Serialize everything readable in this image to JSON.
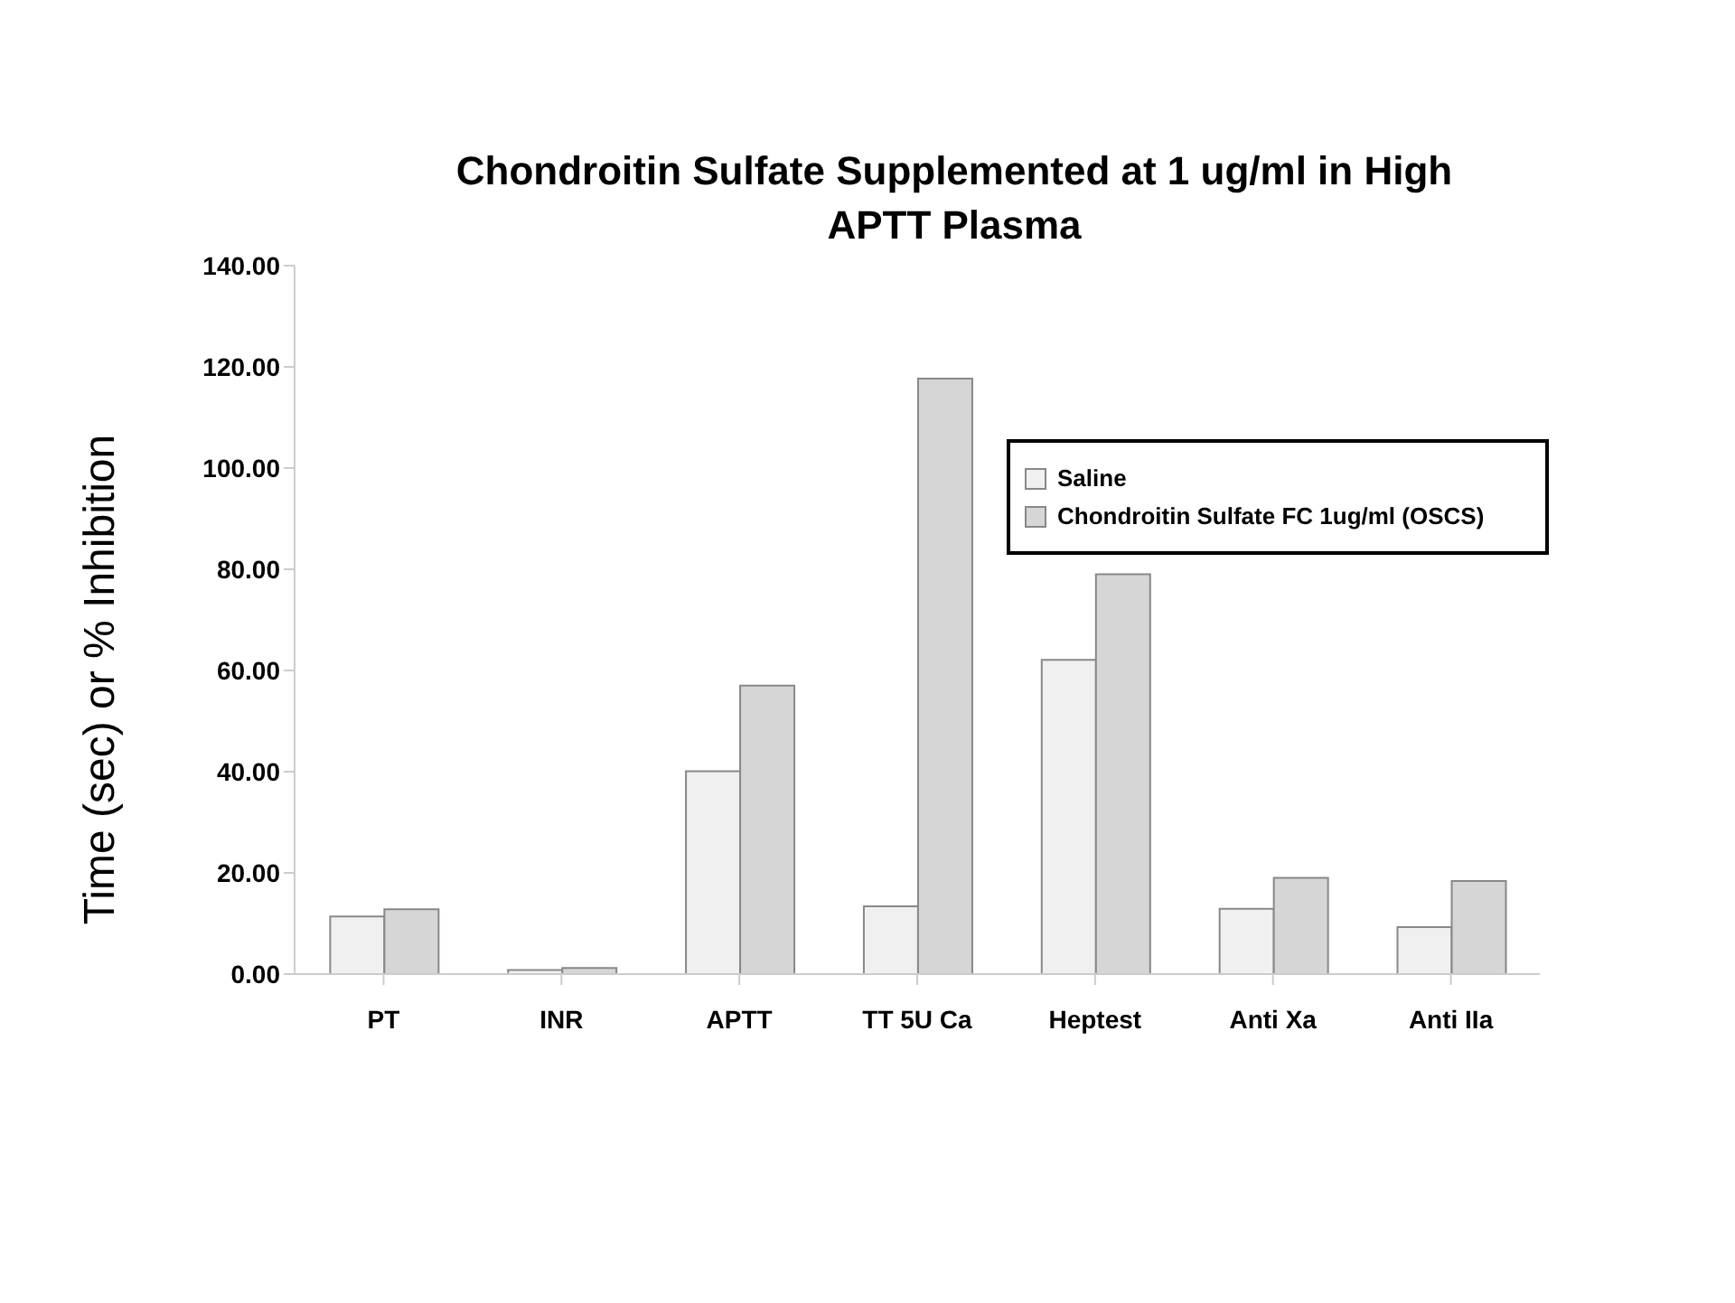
{
  "chart_data": {
    "type": "bar",
    "title": "Chondroitin Sulfate Supplemented at 1 ug/ml in High APTT Plasma",
    "ylabel": "Time (sec) or % Inhibition",
    "categories": [
      "PT",
      "INR",
      "APTT",
      "TT 5U Ca",
      "Heptest",
      "Anti Xa",
      "Anti IIa"
    ],
    "series": [
      {
        "name": "Saline",
        "color": "#f0f0f0",
        "values": [
          11.4,
          0.8,
          40.1,
          13.4,
          62.1,
          12.9,
          9.3
        ]
      },
      {
        "name": "Chondroitin Sulfate FC 1ug/ml (OSCS)",
        "color": "#d6d6d6",
        "values": [
          12.8,
          1.2,
          57.0,
          117.7,
          79.0,
          19.0,
          18.4
        ]
      }
    ],
    "ylim": [
      0,
      140
    ],
    "yticks": [
      {
        "value": 0,
        "label": "0.00"
      },
      {
        "value": 20,
        "label": "20.00"
      },
      {
        "value": 40,
        "label": "40.00"
      },
      {
        "value": 60,
        "label": "60.00"
      },
      {
        "value": 80,
        "label": "80.00"
      },
      {
        "value": 100,
        "label": "100.00"
      },
      {
        "value": 120,
        "label": "120.00"
      },
      {
        "value": 140,
        "label": "140.00"
      }
    ],
    "grid": false,
    "legend": "top right"
  }
}
